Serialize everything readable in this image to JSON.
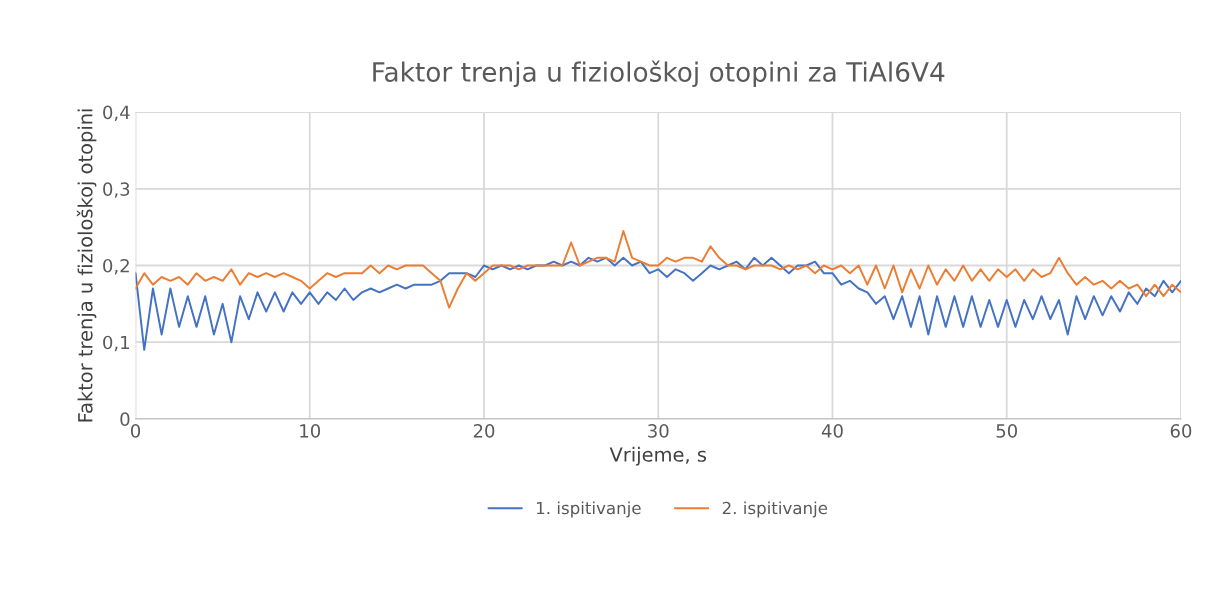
{
  "chart_data": {
    "type": "line",
    "title": "Faktor trenja u fiziološkoj otopini za TiAl6V4",
    "xlabel": "Vrijeme, s",
    "ylabel": "Faktor trenja u fiziološkoj otopini",
    "x": [
      0,
      0.5,
      1,
      1.5,
      2,
      2.5,
      3,
      3.5,
      4,
      4.5,
      5,
      5.5,
      6,
      6.5,
      7,
      7.5,
      8,
      8.5,
      9,
      9.5,
      10,
      10.5,
      11,
      11.5,
      12,
      12.5,
      13,
      13.5,
      14,
      14.5,
      15,
      15.5,
      16,
      16.5,
      17,
      17.5,
      18,
      18.5,
      19,
      19.5,
      20,
      20.5,
      21,
      21.5,
      22,
      22.5,
      23,
      23.5,
      24,
      24.5,
      25,
      25.5,
      26,
      26.5,
      27,
      27.5,
      28,
      28.5,
      29,
      29.5,
      30,
      30.5,
      31,
      31.5,
      32,
      32.5,
      33,
      33.5,
      34,
      34.5,
      35,
      35.5,
      36,
      36.5,
      37,
      37.5,
      38,
      38.5,
      39,
      39.5,
      40,
      40.5,
      41,
      41.5,
      42,
      42.5,
      43,
      43.5,
      44,
      44.5,
      45,
      45.5,
      46,
      46.5,
      47,
      47.5,
      48,
      48.5,
      49,
      49.5,
      50,
      50.5,
      51,
      51.5,
      52,
      52.5,
      53,
      53.5,
      54,
      54.5,
      55,
      55.5,
      56,
      56.5,
      57,
      57.5,
      58,
      58.5,
      59,
      59.5,
      60
    ],
    "series": [
      {
        "name": "1. ispitivanje",
        "color": "#4472c4",
        "values": [
          0.19,
          0.09,
          0.17,
          0.11,
          0.17,
          0.12,
          0.16,
          0.12,
          0.16,
          0.11,
          0.15,
          0.1,
          0.16,
          0.13,
          0.165,
          0.14,
          0.165,
          0.14,
          0.165,
          0.15,
          0.165,
          0.15,
          0.165,
          0.155,
          0.17,
          0.155,
          0.165,
          0.17,
          0.165,
          0.17,
          0.175,
          0.17,
          0.175,
          0.175,
          0.175,
          0.18,
          0.19,
          0.19,
          0.19,
          0.185,
          0.2,
          0.195,
          0.2,
          0.195,
          0.2,
          0.195,
          0.2,
          0.2,
          0.205,
          0.2,
          0.205,
          0.2,
          0.21,
          0.205,
          0.21,
          0.2,
          0.21,
          0.2,
          0.205,
          0.19,
          0.195,
          0.185,
          0.195,
          0.19,
          0.18,
          0.19,
          0.2,
          0.195,
          0.2,
          0.205,
          0.195,
          0.21,
          0.2,
          0.21,
          0.2,
          0.19,
          0.2,
          0.2,
          0.205,
          0.19,
          0.19,
          0.175,
          0.18,
          0.17,
          0.165,
          0.15,
          0.16,
          0.13,
          0.16,
          0.12,
          0.16,
          0.11,
          0.16,
          0.12,
          0.16,
          0.12,
          0.16,
          0.12,
          0.155,
          0.12,
          0.155,
          0.12,
          0.155,
          0.13,
          0.16,
          0.13,
          0.155,
          0.11,
          0.16,
          0.13,
          0.16,
          0.135,
          0.16,
          0.14,
          0.165,
          0.15,
          0.17,
          0.16,
          0.18,
          0.165,
          0.18
        ]
      },
      {
        "name": "2. ispitivanje",
        "color": "#ed7d31",
        "values": [
          0.17,
          0.19,
          0.175,
          0.185,
          0.18,
          0.185,
          0.175,
          0.19,
          0.18,
          0.185,
          0.18,
          0.195,
          0.175,
          0.19,
          0.185,
          0.19,
          0.185,
          0.19,
          0.185,
          0.18,
          0.17,
          0.18,
          0.19,
          0.185,
          0.19,
          0.19,
          0.19,
          0.2,
          0.19,
          0.2,
          0.195,
          0.2,
          0.2,
          0.2,
          0.19,
          0.18,
          0.145,
          0.17,
          0.19,
          0.18,
          0.19,
          0.2,
          0.2,
          0.2,
          0.195,
          0.2,
          0.2,
          0.2,
          0.2,
          0.2,
          0.23,
          0.2,
          0.205,
          0.21,
          0.21,
          0.205,
          0.245,
          0.21,
          0.205,
          0.2,
          0.2,
          0.21,
          0.205,
          0.21,
          0.21,
          0.205,
          0.225,
          0.21,
          0.2,
          0.2,
          0.195,
          0.2,
          0.2,
          0.2,
          0.195,
          0.2,
          0.195,
          0.2,
          0.19,
          0.2,
          0.195,
          0.2,
          0.19,
          0.2,
          0.175,
          0.2,
          0.17,
          0.2,
          0.165,
          0.195,
          0.17,
          0.2,
          0.175,
          0.195,
          0.18,
          0.2,
          0.18,
          0.195,
          0.18,
          0.195,
          0.185,
          0.195,
          0.18,
          0.195,
          0.185,
          0.19,
          0.21,
          0.19,
          0.175,
          0.185,
          0.175,
          0.18,
          0.17,
          0.18,
          0.17,
          0.175,
          0.16,
          0.175,
          0.16,
          0.175,
          0.165
        ]
      }
    ],
    "xlim": [
      0,
      60
    ],
    "xticks": [
      0,
      10,
      20,
      30,
      40,
      50,
      60
    ],
    "ylim": [
      0,
      0.4
    ],
    "yticks": [
      0,
      {
        "value": 0.1,
        "label": "0,1"
      },
      {
        "value": 0.2,
        "label": "0,2"
      },
      {
        "value": 0.3,
        "label": "0,3"
      },
      {
        "value": 0.4,
        "label": "0,4"
      }
    ],
    "grid": true,
    "legend": "bottom",
    "marker": "none",
    "line_style": "solid"
  }
}
